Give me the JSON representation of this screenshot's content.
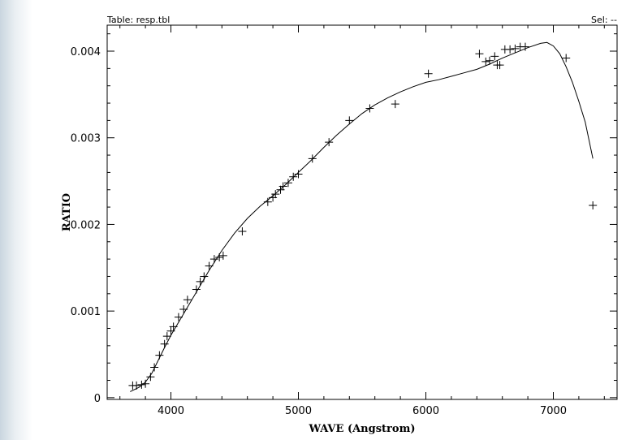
{
  "header": {
    "table_label": "Table: resp.tbl",
    "sel_label": "Sel: --"
  },
  "chart_data": {
    "type": "scatter",
    "title": "",
    "xlabel": "WAVE (Angstrom)",
    "ylabel": "RATIO",
    "xlim": [
      3500,
      7500
    ],
    "ylim": [
      -2e-05,
      0.0043
    ],
    "grid": false,
    "x_ticks": [
      4000,
      5000,
      6000,
      7000
    ],
    "x_tick_labels": [
      "4000",
      "5000",
      "6000",
      "7000"
    ],
    "y_ticks": [
      0,
      0.001,
      0.002,
      0.003,
      0.004
    ],
    "y_tick_labels": [
      "0",
      "0.001",
      "0.002",
      "0.003",
      "0.004"
    ],
    "series": [
      {
        "marker": "plus",
        "points": [
          [
            3700,
            0.00014
          ],
          [
            3730,
            0.00014
          ],
          [
            3770,
            0.00015
          ],
          [
            3800,
            0.00016
          ],
          [
            3840,
            0.00024
          ],
          [
            3870,
            0.00035
          ],
          [
            3910,
            0.00049
          ],
          [
            3950,
            0.00062
          ],
          [
            3970,
            0.00071
          ],
          [
            4000,
            0.00077
          ],
          [
            4020,
            0.00082
          ],
          [
            4060,
            0.00093
          ],
          [
            4100,
            0.00102
          ],
          [
            4130,
            0.00113
          ],
          [
            4200,
            0.00125
          ],
          [
            4230,
            0.00134
          ],
          [
            4260,
            0.0014
          ],
          [
            4300,
            0.00152
          ],
          [
            4340,
            0.0016
          ],
          [
            4380,
            0.00162
          ],
          [
            4410,
            0.00164
          ],
          [
            4560,
            0.00192
          ],
          [
            4760,
            0.00226
          ],
          [
            4800,
            0.00231
          ],
          [
            4820,
            0.00235
          ],
          [
            4860,
            0.0024
          ],
          [
            4880,
            0.00244
          ],
          [
            4920,
            0.00248
          ],
          [
            4960,
            0.00255
          ],
          [
            5000,
            0.00258
          ],
          [
            5110,
            0.00276
          ],
          [
            5240,
            0.00295
          ],
          [
            5400,
            0.0032
          ],
          [
            5560,
            0.00334
          ],
          [
            5760,
            0.00339
          ],
          [
            6020,
            0.00374
          ],
          [
            6420,
            0.00397
          ],
          [
            6470,
            0.00388
          ],
          [
            6500,
            0.00389
          ],
          [
            6540,
            0.00394
          ],
          [
            6560,
            0.00384
          ],
          [
            6580,
            0.00384
          ],
          [
            6620,
            0.00402
          ],
          [
            6660,
            0.00402
          ],
          [
            6700,
            0.00403
          ],
          [
            6740,
            0.00405
          ],
          [
            6780,
            0.00405
          ],
          [
            7100,
            0.00392
          ],
          [
            7310,
            0.00222
          ]
        ]
      },
      {
        "type": "line",
        "points": [
          [
            3680,
            7e-05
          ],
          [
            3750,
            0.00012
          ],
          [
            3800,
            0.00018
          ],
          [
            3850,
            0.00028
          ],
          [
            3900,
            0.00043
          ],
          [
            3950,
            0.00058
          ],
          [
            4000,
            0.00072
          ],
          [
            4100,
            0.00097
          ],
          [
            4200,
            0.00122
          ],
          [
            4300,
            0.00147
          ],
          [
            4400,
            0.0017
          ],
          [
            4500,
            0.0019
          ],
          [
            4600,
            0.00207
          ],
          [
            4700,
            0.00221
          ],
          [
            4800,
            0.00233
          ],
          [
            4900,
            0.00246
          ],
          [
            5000,
            0.0026
          ],
          [
            5100,
            0.00274
          ],
          [
            5200,
            0.00289
          ],
          [
            5300,
            0.00303
          ],
          [
            5400,
            0.00316
          ],
          [
            5500,
            0.00328
          ],
          [
            5600,
            0.00338
          ],
          [
            5700,
            0.00346
          ],
          [
            5800,
            0.00353
          ],
          [
            5900,
            0.00359
          ],
          [
            6000,
            0.00364
          ],
          [
            6100,
            0.00367
          ],
          [
            6200,
            0.00371
          ],
          [
            6300,
            0.00375
          ],
          [
            6400,
            0.00379
          ],
          [
            6500,
            0.00385
          ],
          [
            6600,
            0.00392
          ],
          [
            6700,
            0.00398
          ],
          [
            6800,
            0.00404
          ],
          [
            6900,
            0.00409
          ],
          [
            6950,
            0.0041
          ],
          [
            7000,
            0.00406
          ],
          [
            7050,
            0.00397
          ],
          [
            7100,
            0.00382
          ],
          [
            7150,
            0.00364
          ],
          [
            7200,
            0.00342
          ],
          [
            7250,
            0.00318
          ],
          [
            7310,
            0.00276
          ]
        ]
      }
    ]
  }
}
